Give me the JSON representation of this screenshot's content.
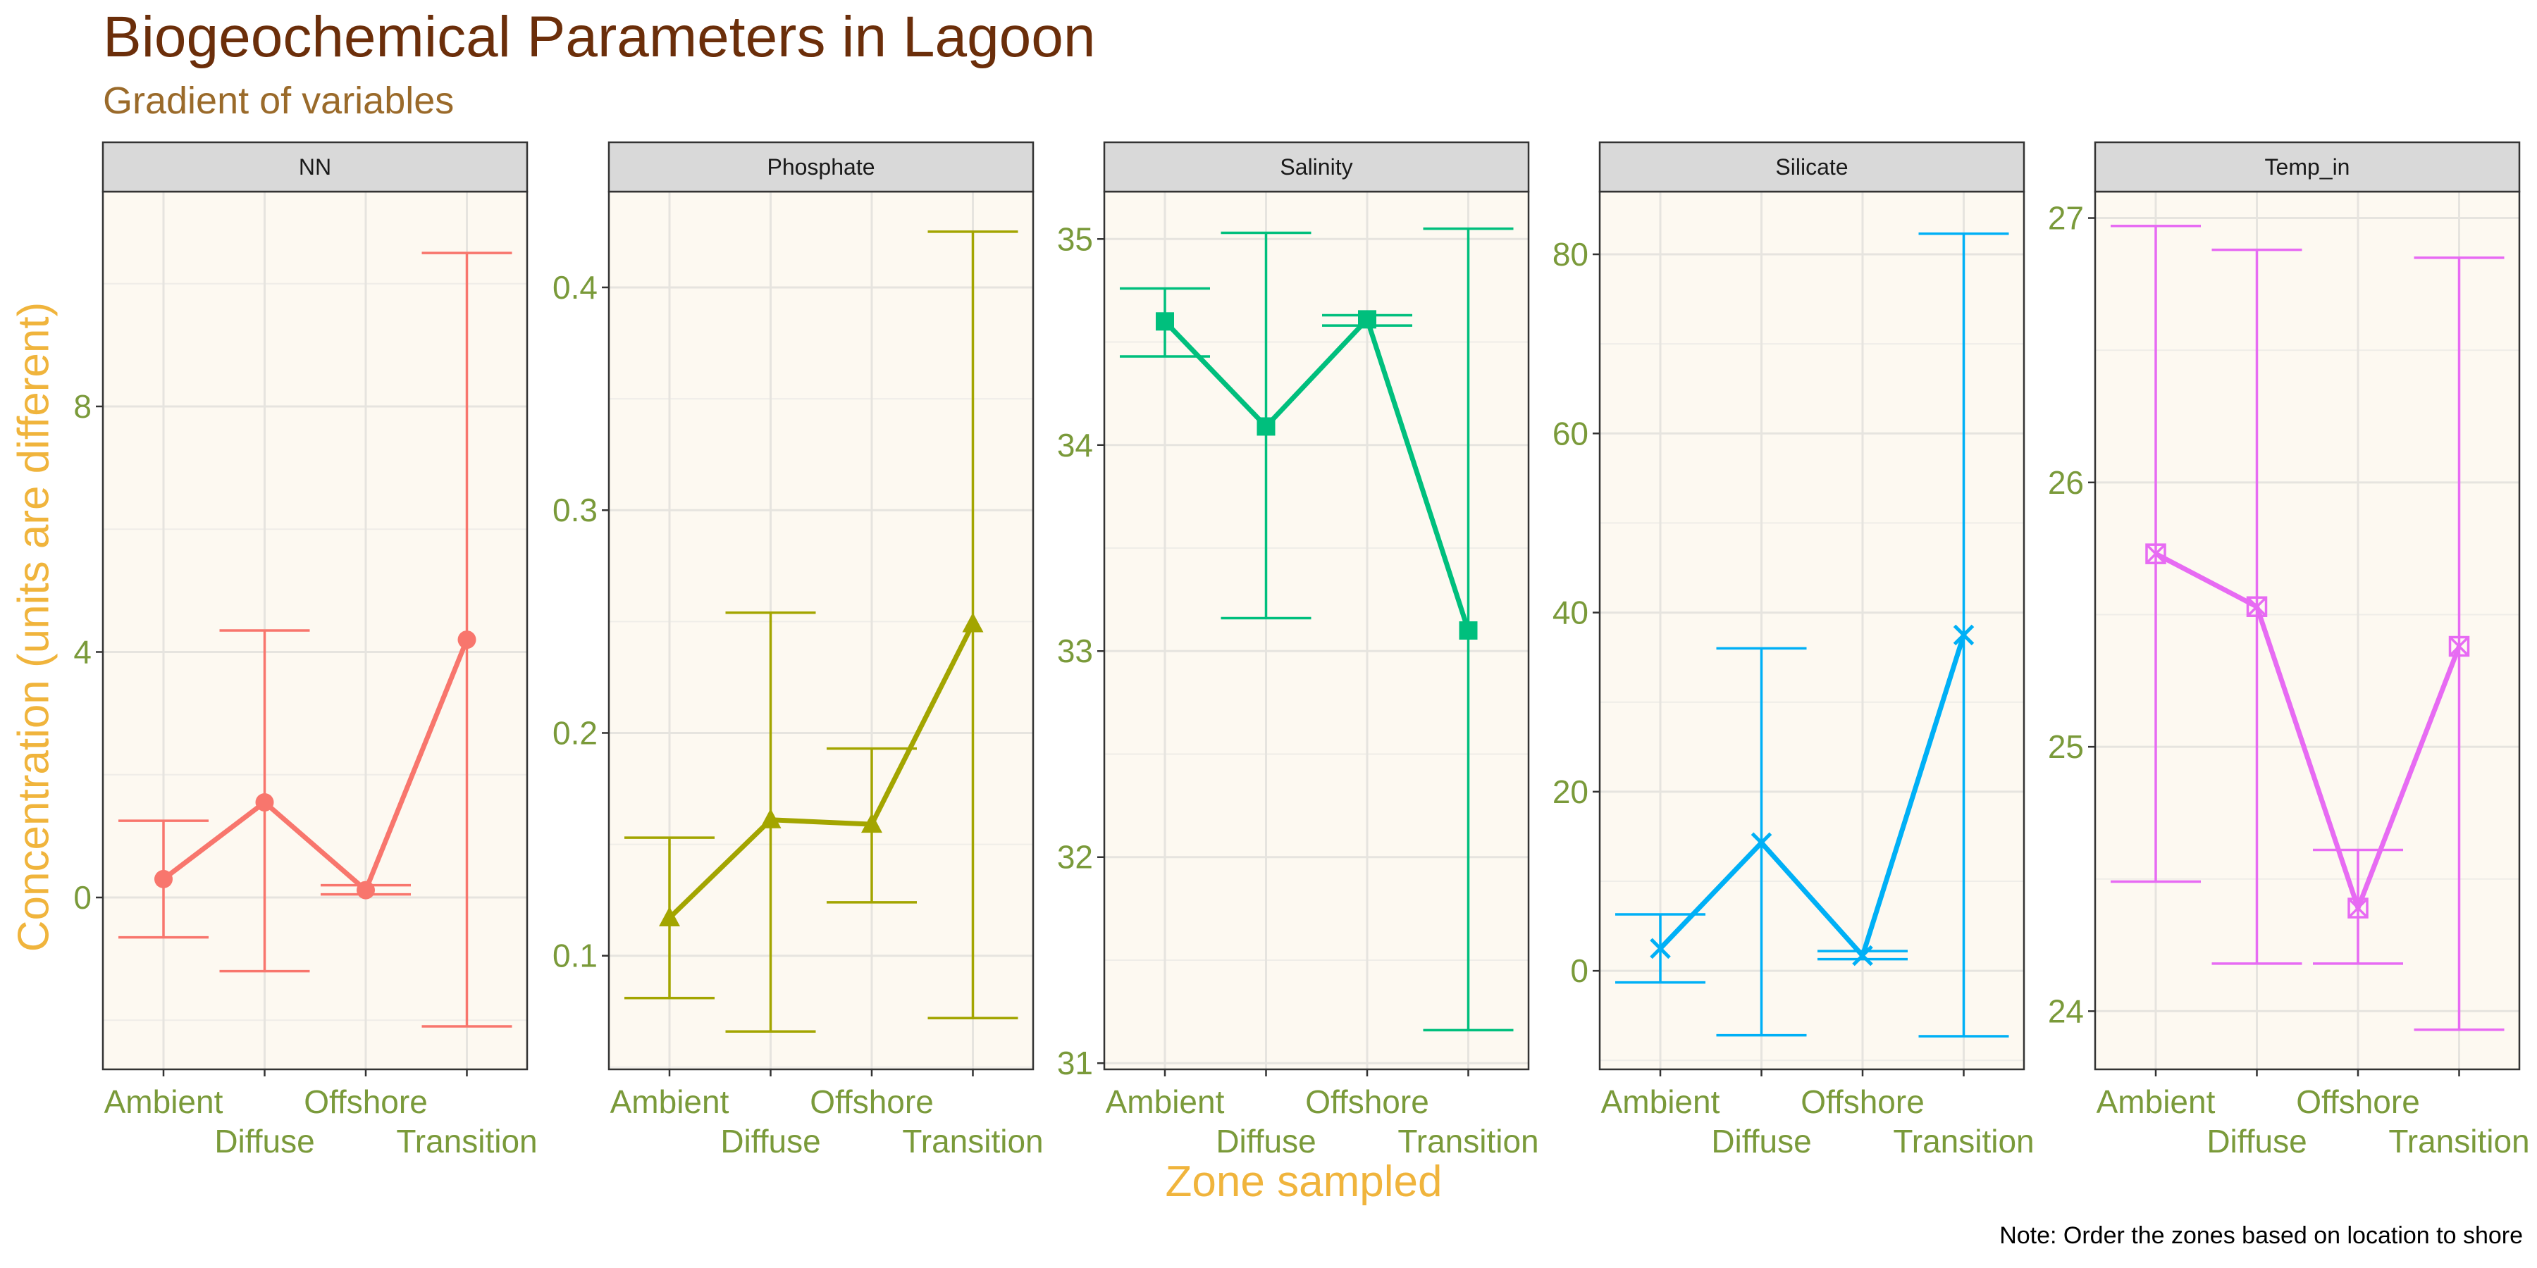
{
  "title": "Biogeochemical Parameters in Lagoon",
  "subtitle": "Gradient of variables",
  "caption": "Note: Order the zones based on location to shore",
  "colors": {
    "title": "#6B2E0A",
    "subtitle": "#9A6A2A",
    "axis_title": "#F0B43C",
    "tick_label": "#7A9A3A",
    "panel_bg": "#FDF9F1",
    "strip_bg": "#D9D9D9"
  },
  "chart_data": {
    "type": "line",
    "xlabel": "Zone sampled",
    "ylabel": "Concentration (units are different)",
    "categories": [
      "Ambient",
      "Diffuse",
      "Offshore",
      "Transition"
    ],
    "facets": [
      {
        "name": "NN",
        "color": "#F8766D",
        "marker": "circle",
        "ylim": [
          -2.8,
          11.5
        ],
        "yticks": [
          0,
          4,
          8
        ],
        "ytick_labels": [
          "0",
          "4",
          "8"
        ],
        "values": [
          0.3,
          1.55,
          0.12,
          4.2
        ],
        "err_low": [
          -0.65,
          -1.2,
          0.05,
          -2.1
        ],
        "err_high": [
          1.25,
          4.35,
          0.2,
          10.5
        ]
      },
      {
        "name": "Phosphate",
        "color": "#A3A500",
        "marker": "triangle",
        "ylim": [
          0.049,
          0.443
        ],
        "yticks": [
          0.1,
          0.2,
          0.3,
          0.4
        ],
        "ytick_labels": [
          "0.1",
          "0.2",
          "0.3",
          "0.4"
        ],
        "values": [
          0.117,
          0.161,
          0.159,
          0.249
        ],
        "err_low": [
          0.081,
          0.066,
          0.124,
          0.072
        ],
        "err_high": [
          0.153,
          0.254,
          0.193,
          0.425
        ]
      },
      {
        "name": "Salinity",
        "color": "#00BF7D",
        "marker": "square",
        "ylim": [
          30.97,
          35.23
        ],
        "yticks": [
          31,
          32,
          33,
          34,
          35
        ],
        "ytick_labels": [
          "31",
          "32",
          "33",
          "34",
          "35"
        ],
        "values": [
          34.6,
          34.09,
          34.61,
          33.1
        ],
        "err_low": [
          34.43,
          33.16,
          34.58,
          31.16
        ],
        "err_high": [
          34.76,
          35.03,
          34.63,
          35.05
        ]
      },
      {
        "name": "Silicate",
        "color": "#00B0F6",
        "marker": "cross",
        "ylim": [
          -11,
          87
        ],
        "yticks": [
          0,
          20,
          40,
          60,
          80
        ],
        "ytick_labels": [
          "0",
          "20",
          "40",
          "60",
          "80"
        ],
        "values": [
          2.5,
          14.3,
          1.7,
          37.5
        ],
        "err_low": [
          -1.3,
          -7.2,
          1.3,
          -7.3
        ],
        "err_high": [
          6.3,
          36.0,
          2.2,
          82.3
        ]
      },
      {
        "name": "Temp_in",
        "color": "#E76BF3",
        "marker": "square-cross",
        "ylim": [
          23.78,
          27.1
        ],
        "yticks": [
          24,
          25,
          26,
          27
        ],
        "ytick_labels": [
          "24",
          "25",
          "26",
          "27"
        ],
        "values": [
          25.73,
          25.53,
          24.39,
          25.38
        ],
        "err_low": [
          24.49,
          24.18,
          24.18,
          23.93
        ],
        "err_high": [
          26.97,
          26.88,
          24.61,
          26.85
        ]
      }
    ]
  }
}
